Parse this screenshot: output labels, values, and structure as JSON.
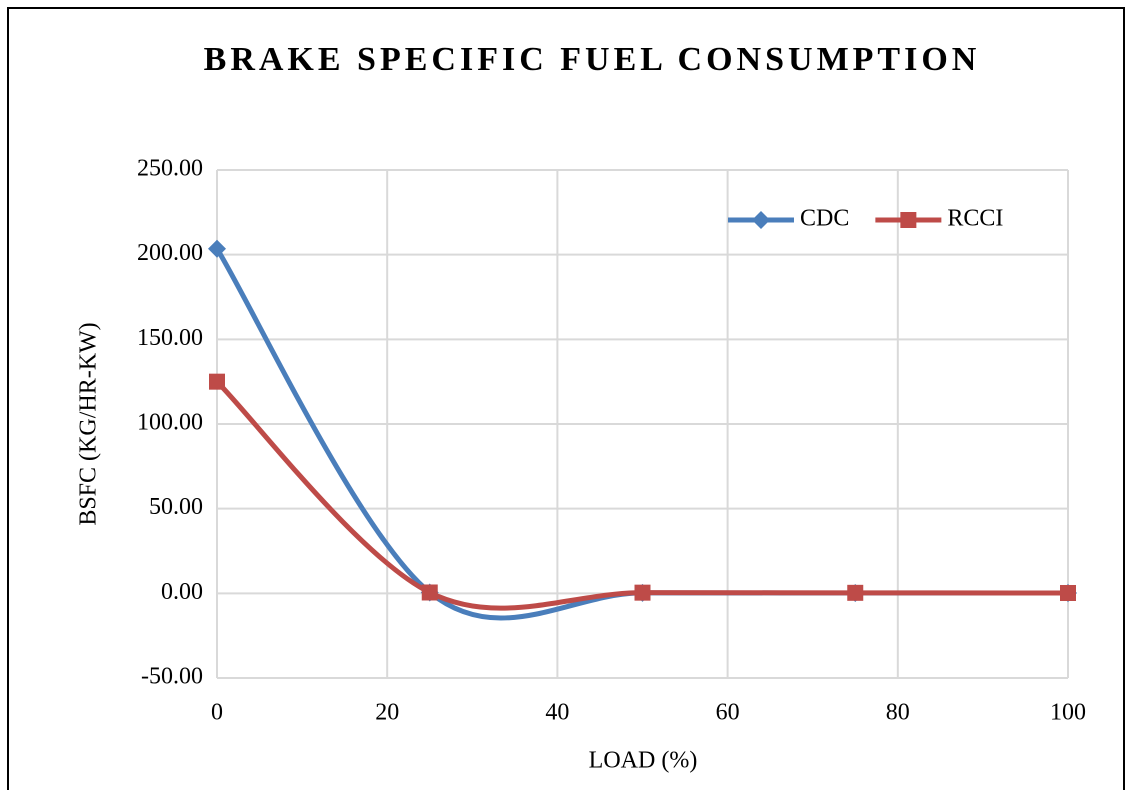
{
  "chart_data": {
    "type": "line",
    "smooth": true,
    "title": "BRAKE SPECIFIC FUEL CONSUMPTION",
    "x_label": "LOAD (%)",
    "y_label": "BSFC (KG/HR-KW)",
    "x": [
      0,
      25,
      50,
      75,
      100
    ],
    "series": [
      {
        "name": "CDC",
        "color": "#4a7ebb",
        "marker": "diamond",
        "values": [
          203.5,
          0.5,
          0.3,
          0.2,
          0.2
        ]
      },
      {
        "name": "RCCI",
        "color": "#be4b48",
        "marker": "square",
        "values": [
          125,
          0.5,
          0.4,
          0.3,
          0.2
        ]
      }
    ],
    "xlim": [
      0,
      100
    ],
    "xticks": [
      0,
      20,
      40,
      60,
      80,
      100
    ],
    "ylim": [
      -50,
      250
    ],
    "yticks": [
      {
        "value": -50,
        "label": "-50.00"
      },
      {
        "value": 0,
        "label": "0.00"
      },
      {
        "value": 50,
        "label": "50.00"
      },
      {
        "value": 100,
        "label": "100.00"
      },
      {
        "value": 150,
        "label": "150.00"
      },
      {
        "value": 200,
        "label": "200.00"
      },
      {
        "value": 250,
        "label": "250.00"
      }
    ],
    "grid": true,
    "legend": "upper right"
  }
}
